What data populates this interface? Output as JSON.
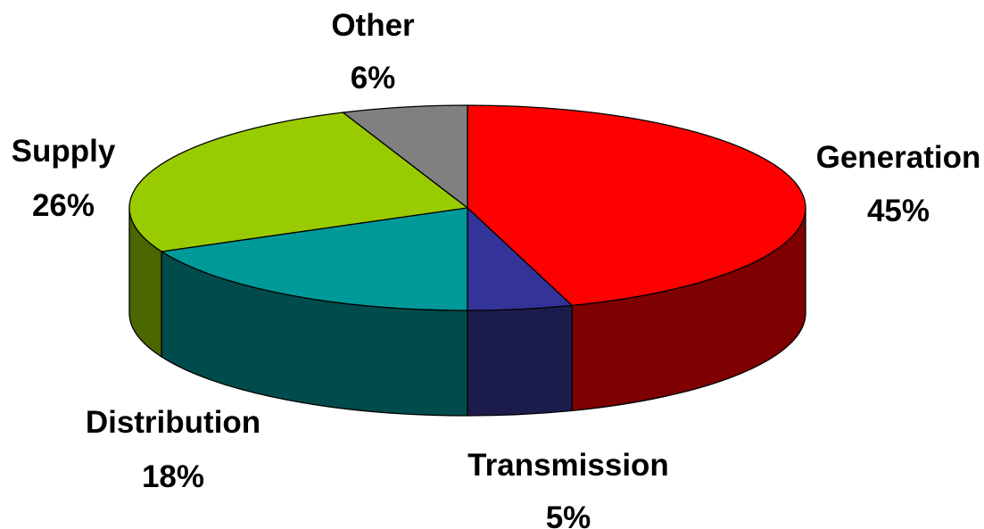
{
  "chart_data": {
    "type": "pie",
    "style": "3d",
    "title": "",
    "slices": [
      {
        "label": "Generation",
        "value": 45,
        "percent_label": "45%",
        "color": "#FF0000",
        "side_color": "#7F0000"
      },
      {
        "label": "Transmission",
        "value": 5,
        "percent_label": "5%",
        "color": "#333399",
        "side_color": "#1C1C4C"
      },
      {
        "label": "Distribution",
        "value": 18,
        "percent_label": "18%",
        "color": "#009999",
        "side_color": "#004C4C"
      },
      {
        "label": "Supply",
        "value": 26,
        "percent_label": "26%",
        "color": "#99CC00",
        "side_color": "#4C6600"
      },
      {
        "label": "Other",
        "value": 6,
        "percent_label": "6%",
        "color": "#808080",
        "side_color": "#404040"
      }
    ],
    "start_angle_deg": 0,
    "direction": "clockwise",
    "edge_color": "#000000"
  }
}
